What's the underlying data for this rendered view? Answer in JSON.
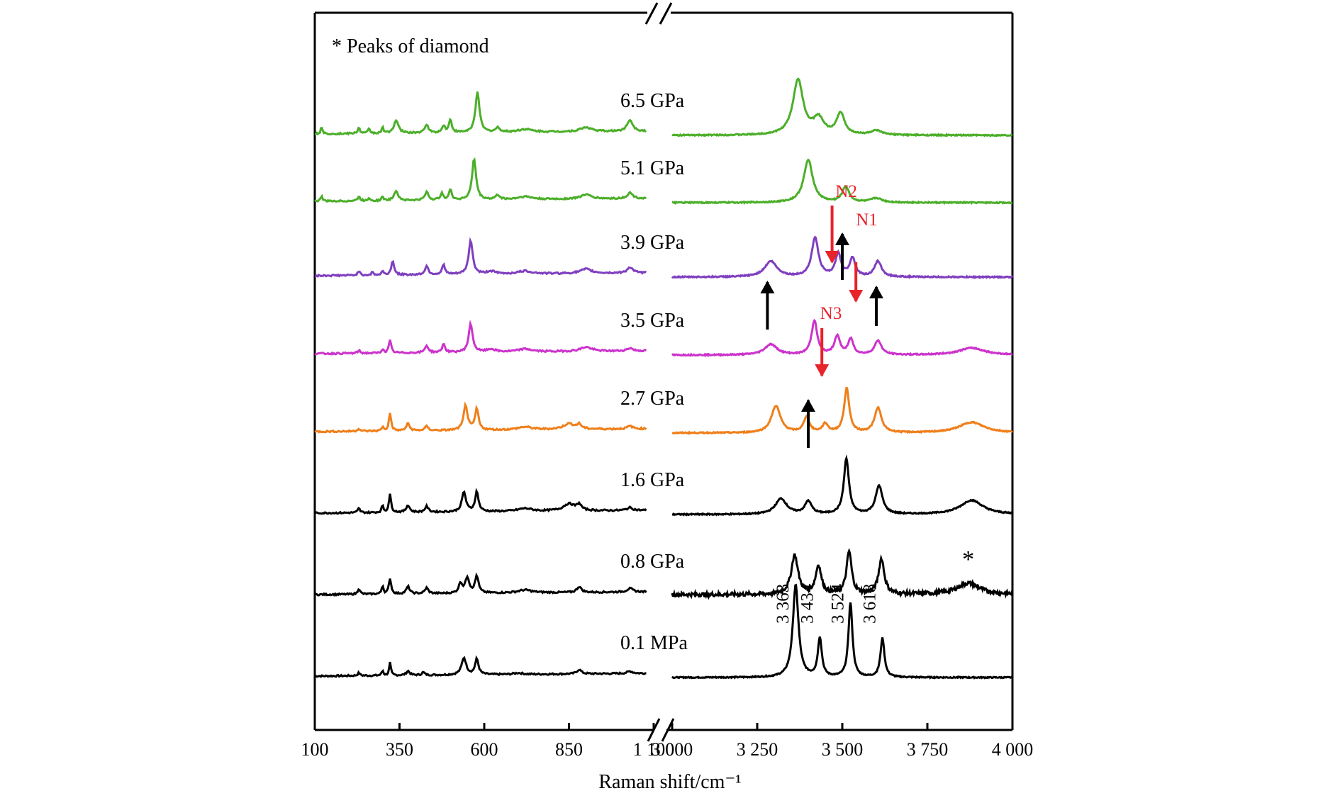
{
  "chart_data": {
    "type": "line",
    "title": "",
    "xlabel": "Raman shift/cm⁻¹",
    "ylabel": "",
    "note": "* Peaks of diamond",
    "x_break": {
      "left_range": [
        100,
        1100
      ],
      "right_range": [
        3000,
        4000
      ]
    },
    "x_ticks_left": [
      {
        "value": 100,
        "label": "100"
      },
      {
        "value": 350,
        "label": "350"
      },
      {
        "value": 600,
        "label": "600"
      },
      {
        "value": 850,
        "label": "850"
      },
      {
        "value": 1100,
        "label": "1 100"
      }
    ],
    "x_ticks_right": [
      {
        "value": 3000,
        "label": "3 000"
      },
      {
        "value": 3250,
        "label": "3 250"
      },
      {
        "value": 3500,
        "label": "3 500"
      },
      {
        "value": 3750,
        "label": "3 750"
      },
      {
        "value": 4000,
        "label": "4 000"
      }
    ],
    "series": [
      {
        "name": "0.1 MPa",
        "color": "#000000",
        "offset": 40,
        "low_peaks": [
          [
            230,
            4,
            4
          ],
          [
            300,
            7,
            3
          ],
          [
            322,
            18,
            3
          ],
          [
            375,
            6,
            6
          ],
          [
            420,
            4,
            5
          ],
          [
            540,
            24,
            8
          ],
          [
            578,
            22,
            6
          ],
          [
            700,
            2,
            15
          ],
          [
            880,
            6,
            8
          ],
          [
            1030,
            3,
            10
          ]
        ],
        "high_peaks": [
          [
            3363,
            130,
            10
          ],
          [
            3434,
            55,
            7
          ],
          [
            3524,
            105,
            7
          ],
          [
            3618,
            55,
            7
          ]
        ],
        "high_base": 0,
        "noise": 0.4
      },
      {
        "name": "0.8 GPa",
        "color": "#000000",
        "offset": 155,
        "low_peaks": [
          [
            230,
            8,
            4
          ],
          [
            300,
            12,
            3
          ],
          [
            322,
            22,
            4
          ],
          [
            375,
            10,
            6
          ],
          [
            430,
            8,
            6
          ],
          [
            530,
            14,
            6
          ],
          [
            550,
            22,
            7
          ],
          [
            578,
            24,
            6
          ],
          [
            720,
            4,
            25
          ],
          [
            880,
            8,
            8
          ],
          [
            1030,
            5,
            10
          ]
        ],
        "high_peaks": [
          [
            3360,
            55,
            12
          ],
          [
            3430,
            40,
            10
          ],
          [
            3520,
            60,
            9
          ],
          [
            3615,
            50,
            10
          ],
          [
            3870,
            16,
            40
          ]
        ],
        "high_base": 2,
        "noise": 1.4
      },
      {
        "name": "1.6 GPa",
        "color": "#000000",
        "offset": 270,
        "low_peaks": [
          [
            230,
            6,
            4
          ],
          [
            300,
            10,
            3
          ],
          [
            322,
            25,
            4
          ],
          [
            375,
            10,
            6
          ],
          [
            430,
            8,
            6
          ],
          [
            540,
            28,
            7
          ],
          [
            578,
            28,
            6
          ],
          [
            720,
            4,
            25
          ],
          [
            850,
            10,
            20
          ],
          [
            880,
            8,
            8
          ],
          [
            1030,
            4,
            10
          ]
        ],
        "high_peaks": [
          [
            3320,
            22,
            20
          ],
          [
            3400,
            18,
            12
          ],
          [
            3512,
            78,
            9
          ],
          [
            3608,
            40,
            12
          ],
          [
            3880,
            20,
            40
          ]
        ],
        "high_base": 0,
        "noise": 0.4
      },
      {
        "name": "2.7 GPa",
        "color": "#ef7f1a",
        "offset": 385,
        "low_peaks": [
          [
            230,
            4,
            4
          ],
          [
            300,
            6,
            3
          ],
          [
            322,
            25,
            4
          ],
          [
            375,
            10,
            6
          ],
          [
            430,
            6,
            6
          ],
          [
            545,
            35,
            7
          ],
          [
            578,
            30,
            6
          ],
          [
            720,
            4,
            25
          ],
          [
            850,
            8,
            20
          ],
          [
            880,
            6,
            8
          ],
          [
            1030,
            4,
            10
          ]
        ],
        "high_peaks": [
          [
            3305,
            38,
            16
          ],
          [
            3395,
            22,
            10
          ],
          [
            3450,
            12,
            10
          ],
          [
            3513,
            62,
            9
          ],
          [
            3605,
            35,
            12
          ],
          [
            3880,
            15,
            45
          ]
        ],
        "high_base": 0,
        "noise": 0.4
      },
      {
        "name": "3.5 GPa",
        "color": "#cc33cc",
        "offset": 495,
        "low_peaks": [
          [
            230,
            4,
            4
          ],
          [
            300,
            6,
            3
          ],
          [
            322,
            18,
            4
          ],
          [
            430,
            10,
            6
          ],
          [
            480,
            12,
            5
          ],
          [
            560,
            40,
            7
          ],
          [
            620,
            4,
            15
          ],
          [
            720,
            4,
            25
          ],
          [
            900,
            6,
            20
          ],
          [
            1030,
            4,
            10
          ]
        ],
        "high_peaks": [
          [
            3290,
            15,
            22
          ],
          [
            3418,
            48,
            10
          ],
          [
            3485,
            26,
            10
          ],
          [
            3525,
            22,
            9
          ],
          [
            3605,
            20,
            12
          ],
          [
            3880,
            10,
            45
          ]
        ],
        "high_base": 0,
        "noise": 0.4
      },
      {
        "name": "3.9 GPa",
        "color": "#7f3fbf",
        "offset": 605,
        "low_peaks": [
          [
            230,
            6,
            4
          ],
          [
            270,
            4,
            4
          ],
          [
            300,
            6,
            3
          ],
          [
            330,
            20,
            5
          ],
          [
            430,
            12,
            6
          ],
          [
            480,
            14,
            5
          ],
          [
            560,
            48,
            7
          ],
          [
            620,
            4,
            15
          ],
          [
            720,
            4,
            25
          ],
          [
            900,
            6,
            20
          ],
          [
            1030,
            8,
            10
          ]
        ],
        "high_peaks": [
          [
            3290,
            22,
            22
          ],
          [
            3420,
            55,
            12
          ],
          [
            3488,
            32,
            10
          ],
          [
            3530,
            26,
            10
          ],
          [
            3605,
            22,
            12
          ]
        ],
        "high_base": 0,
        "noise": 0.4
      },
      {
        "name": "5.1 GPa",
        "color": "#4caf2a",
        "offset": 710,
        "low_peaks": [
          [
            120,
            8,
            3
          ],
          [
            230,
            6,
            4
          ],
          [
            260,
            4,
            4
          ],
          [
            300,
            6,
            3
          ],
          [
            340,
            14,
            7
          ],
          [
            430,
            12,
            6
          ],
          [
            475,
            10,
            5
          ],
          [
            500,
            14,
            5
          ],
          [
            570,
            58,
            7
          ],
          [
            640,
            6,
            8
          ],
          [
            720,
            4,
            25
          ],
          [
            900,
            6,
            20
          ],
          [
            1030,
            8,
            10
          ]
        ],
        "high_peaks": [
          [
            3400,
            60,
            16
          ],
          [
            3510,
            22,
            12
          ],
          [
            3600,
            6,
            20
          ]
        ],
        "high_base": 0,
        "noise": 0.4
      },
      {
        "name": "6.5 GPa",
        "color": "#4caf2a",
        "offset": 805,
        "low_peaks": [
          [
            120,
            10,
            3
          ],
          [
            230,
            8,
            4
          ],
          [
            260,
            6,
            4
          ],
          [
            300,
            8,
            3
          ],
          [
            340,
            18,
            8
          ],
          [
            430,
            12,
            6
          ],
          [
            480,
            10,
            5
          ],
          [
            500,
            18,
            5
          ],
          [
            580,
            58,
            7
          ],
          [
            640,
            6,
            8
          ],
          [
            720,
            4,
            25
          ],
          [
            900,
            6,
            20
          ],
          [
            1030,
            16,
            10
          ]
        ],
        "high_peaks": [
          [
            3370,
            78,
            18
          ],
          [
            3430,
            22,
            18
          ],
          [
            3495,
            30,
            14
          ],
          [
            3600,
            6,
            20
          ]
        ],
        "high_base": 0,
        "noise": 0.4
      }
    ],
    "peak_labels": [
      {
        "x": 3363,
        "label": "3 363"
      },
      {
        "x": 3434,
        "label": "3 434"
      },
      {
        "x": 3524,
        "label": "3 524"
      },
      {
        "x": 3618,
        "label": "3 618"
      }
    ],
    "diamond_marker": {
      "x": 3870,
      "label": "*"
    },
    "annotations": [
      {
        "label": "N1",
        "color": "#e8232a",
        "x": 3530,
        "arrow": "down"
      },
      {
        "label": "N2",
        "color": "#e8232a",
        "x": 3470,
        "arrow": "down"
      },
      {
        "label": "N3",
        "color": "#e8232a",
        "x": 3440,
        "arrow": "down"
      }
    ]
  }
}
